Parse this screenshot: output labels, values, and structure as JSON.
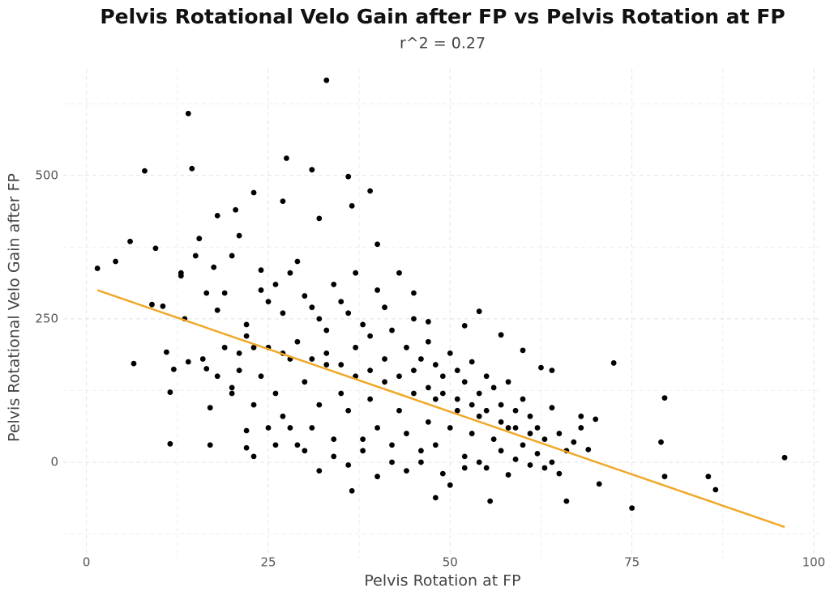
{
  "chart_data": {
    "type": "scatter",
    "title": "Pelvis Rotational Velo Gain after FP vs Pelvis Rotation at FP",
    "subtitle": "r^2 = 0.27",
    "x_label": "Pelvis Rotation at FP",
    "y_label": "Pelvis Rotational Velo Gain after FP",
    "color": "#000000",
    "x": [
      1.5,
      4,
      6,
      6.5,
      8,
      9,
      9.5,
      10.5,
      11,
      11.5,
      11.5,
      12,
      13,
      13,
      13.5,
      14,
      14,
      14.5,
      15,
      15.5,
      16,
      16.5,
      16.5,
      17,
      17,
      18,
      17.5,
      18,
      19,
      20,
      20.5,
      21,
      22,
      22,
      23,
      24,
      27,
      27.5,
      31,
      32,
      33,
      36,
      36.5,
      39,
      40,
      72.5,
      75,
      79,
      79.5,
      79.5,
      85.5,
      86.5,
      96,
      70,
      70.5,
      66,
      55.5,
      58,
      36.5,
      48,
      64,
      62.5,
      68,
      69,
      60,
      54,
      57,
      52,
      45,
      47,
      24,
      25,
      26,
      27,
      28,
      29,
      30,
      31,
      32,
      33,
      34,
      35,
      36,
      37,
      38,
      39,
      40,
      41,
      42,
      43,
      44,
      45,
      46,
      47,
      48,
      49,
      50,
      51,
      52,
      53,
      54,
      55,
      56,
      57,
      58,
      59,
      60,
      61,
      62,
      63,
      64,
      65,
      66,
      67,
      68,
      23,
      24,
      25,
      26,
      27,
      28,
      29,
      30,
      31,
      32,
      33,
      34,
      35,
      36,
      37,
      38,
      39,
      40,
      41,
      42,
      43,
      44,
      45,
      46,
      47,
      48,
      49,
      50,
      51,
      52,
      53,
      54,
      55,
      56,
      57,
      58,
      59,
      60,
      61,
      62,
      63,
      64,
      65,
      25,
      27,
      29,
      31,
      33,
      35,
      37,
      39,
      41,
      43,
      45,
      47,
      49,
      51,
      53,
      55,
      57,
      59,
      61,
      26,
      28,
      30,
      32,
      34,
      36,
      38,
      40,
      42,
      44,
      46,
      48,
      50,
      52,
      54,
      22,
      23,
      21,
      20,
      19,
      18,
      22,
      23,
      21,
      20
    ],
    "values": [
      338,
      350,
      385,
      172,
      508,
      275,
      373,
      272,
      192,
      122,
      32,
      162,
      330,
      325,
      250,
      608,
      175,
      512,
      360,
      390,
      180,
      295,
      163,
      30,
      95,
      265,
      340,
      430,
      295,
      360,
      440,
      395,
      240,
      55,
      470,
      335,
      455,
      530,
      510,
      425,
      666,
      498,
      447,
      473,
      380,
      173,
      -80,
      35,
      112,
      -25,
      -25,
      -48,
      8,
      75,
      -38,
      -68,
      -68,
      -22,
      -50,
      -62,
      160,
      165,
      60,
      22,
      195,
      263,
      222,
      238,
      295,
      245,
      300,
      280,
      310,
      260,
      330,
      350,
      290,
      270,
      250,
      230,
      310,
      280,
      260,
      330,
      240,
      220,
      300,
      270,
      230,
      330,
      200,
      250,
      180,
      210,
      170,
      150,
      190,
      160,
      140,
      175,
      120,
      150,
      130,
      100,
      140,
      90,
      110,
      80,
      60,
      40,
      95,
      50,
      20,
      35,
      80,
      100,
      150,
      60,
      120,
      80,
      180,
      30,
      140,
      60,
      100,
      170,
      40,
      120,
      90,
      150,
      20,
      110,
      60,
      140,
      0,
      90,
      50,
      120,
      20,
      70,
      110,
      -20,
      60,
      90,
      10,
      50,
      80,
      -10,
      40,
      20,
      60,
      5,
      30,
      -5,
      15,
      -10,
      0,
      -20,
      200,
      190,
      210,
      180,
      190,
      170,
      200,
      160,
      180,
      150,
      160,
      130,
      120,
      110,
      100,
      90,
      70,
      60,
      50,
      30,
      60,
      20,
      -15,
      10,
      -5,
      40,
      -25,
      30,
      -15,
      0,
      30,
      -40,
      -10,
      0,
      220,
      200,
      160,
      130,
      200,
      150,
      25,
      10,
      190,
      120
    ],
    "trend": {
      "x": [
        1.5,
        96
      ],
      "values": [
        300,
        -113
      ],
      "color": "#f0a828"
    },
    "xlim": [
      -3.2,
      100.9
    ],
    "ylim": [
      -168,
      686
    ],
    "xticks": [
      0,
      25,
      50,
      75,
      100
    ],
    "yticks": [
      0,
      250,
      500
    ],
    "xminor": [
      12.5,
      37.5,
      62.5,
      87.5
    ],
    "yminor": [
      -125,
      125,
      375,
      625
    ],
    "grid": true
  }
}
